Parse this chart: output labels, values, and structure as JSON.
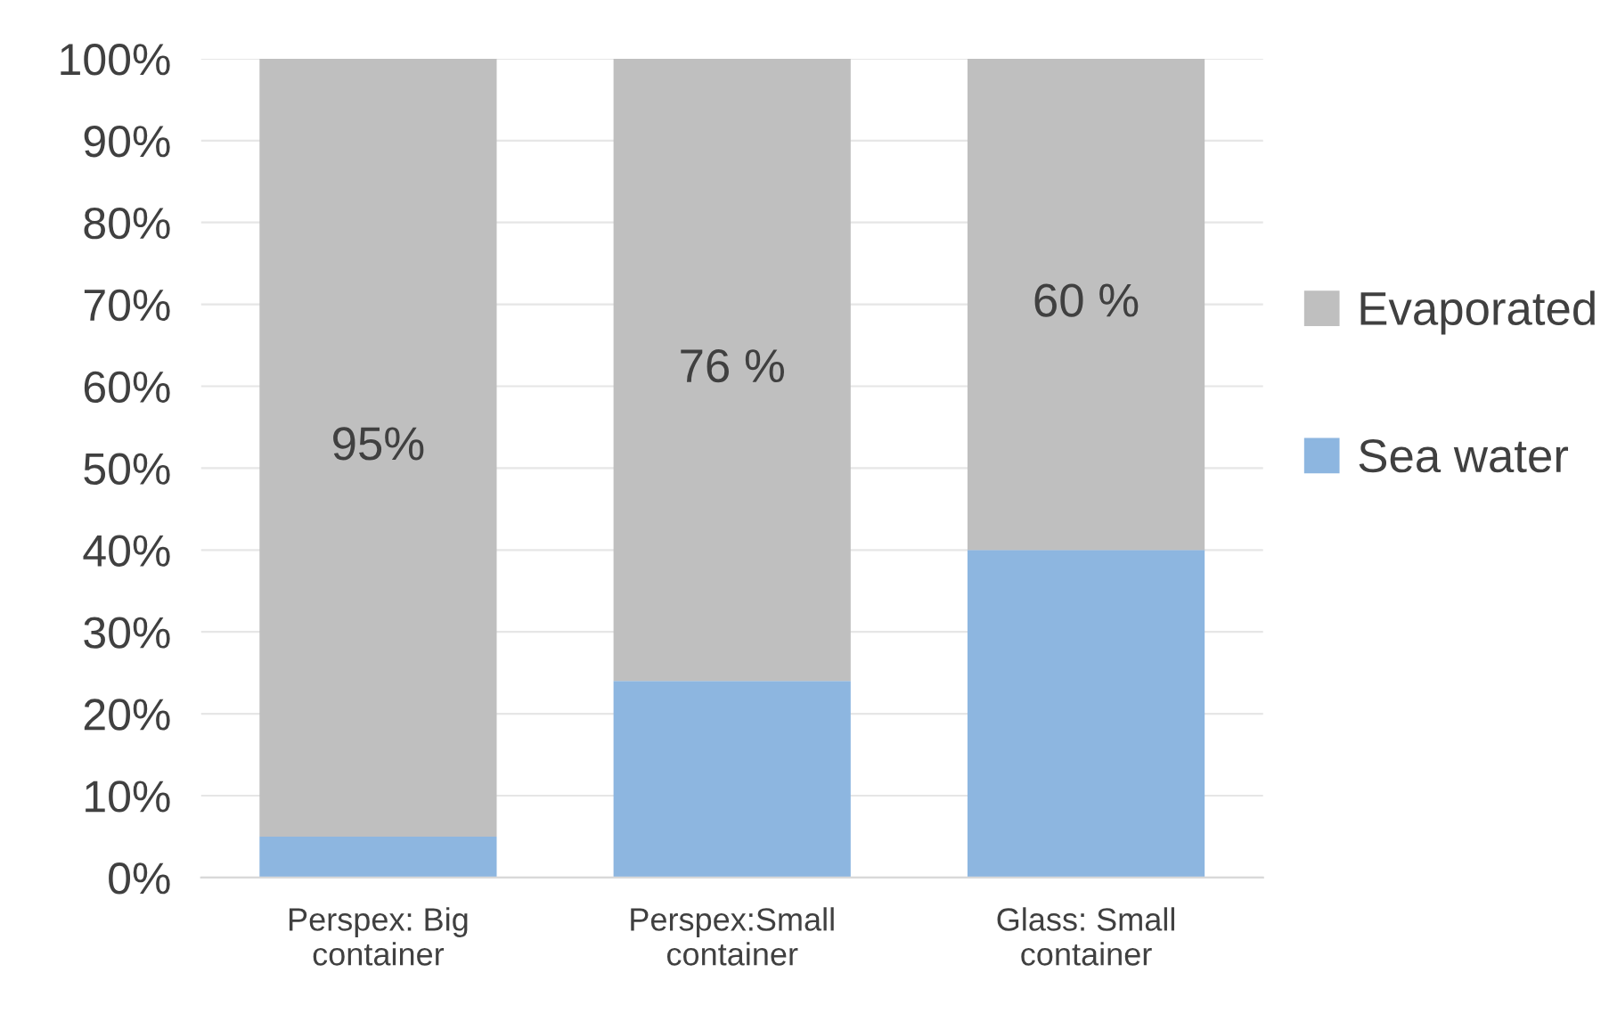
{
  "chart_data": {
    "type": "bar",
    "stacked": true,
    "categories": [
      "Perspex: Big\ncontainer",
      "Perspex:Small\ncontainer",
      "Glass: Small\ncontainer"
    ],
    "series": [
      {
        "name": "Sea water",
        "color": "#8db6e0",
        "values": [
          5,
          24,
          40
        ]
      },
      {
        "name": "Evaporated",
        "color": "#bfbfbf",
        "values": [
          95,
          76,
          60
        ],
        "value_labels": [
          "95%",
          "76 %",
          "60 %"
        ]
      }
    ],
    "ylim": [
      0,
      100
    ],
    "yticks": [
      {
        "value": 0,
        "label": "0%"
      },
      {
        "value": 10,
        "label": "10%"
      },
      {
        "value": 20,
        "label": "20%"
      },
      {
        "value": 30,
        "label": "30%"
      },
      {
        "value": 40,
        "label": "40%"
      },
      {
        "value": 50,
        "label": "50%"
      },
      {
        "value": 60,
        "label": "60%"
      },
      {
        "value": 70,
        "label": "70%"
      },
      {
        "value": 80,
        "label": "80%"
      },
      {
        "value": 90,
        "label": "90%"
      },
      {
        "value": 100,
        "label": "100%"
      }
    ],
    "grid": "y",
    "legend": "right"
  }
}
